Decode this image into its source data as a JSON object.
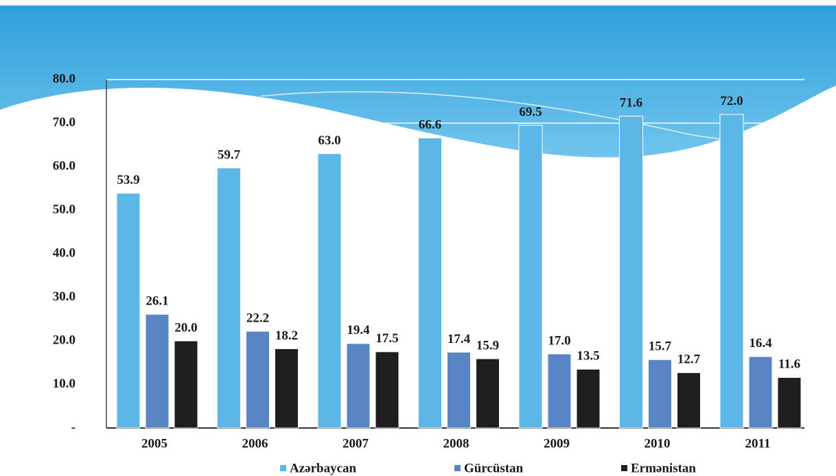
{
  "chart_data": {
    "type": "bar",
    "categories": [
      "2005",
      "2006",
      "2007",
      "2008",
      "2009",
      "2010",
      "2011"
    ],
    "series": [
      {
        "name": "Azərbaycan",
        "color": "#5cb6e6",
        "values": [
          53.9,
          59.7,
          63.0,
          66.6,
          69.5,
          71.6,
          72.0
        ],
        "value_labels": [
          "53.9",
          "59.7",
          "63.0",
          "66.6",
          "69.5",
          "71.6",
          "72.0"
        ]
      },
      {
        "name": "Gürcüstan",
        "color": "#5886c4",
        "values": [
          26.1,
          22.2,
          19.4,
          17.4,
          17.0,
          15.7,
          16.4
        ],
        "value_labels": [
          "26.1",
          "22.2",
          "19.4",
          "17.4",
          "17.0",
          "15.7",
          "16.4"
        ]
      },
      {
        "name": "Ermənistan",
        "color": "#1e1e1e",
        "values": [
          20.0,
          18.2,
          17.5,
          15.9,
          13.5,
          12.7,
          11.6
        ],
        "value_labels": [
          "20.0",
          "18.2",
          "17.5",
          "15.9",
          "13.5",
          "12.7",
          "11.6"
        ]
      }
    ],
    "ylim": [
      0,
      80
    ],
    "yticks": [
      {
        "value": 0,
        "label": "-"
      },
      {
        "value": 10,
        "label": "10.0"
      },
      {
        "value": 20,
        "label": "20.0"
      },
      {
        "value": 30,
        "label": "30.0"
      },
      {
        "value": 40,
        "label": "40.0"
      },
      {
        "value": 50,
        "label": "50.0"
      },
      {
        "value": 60,
        "label": "60.0"
      },
      {
        "value": 70,
        "label": "70.0"
      },
      {
        "value": 80,
        "label": "80.0"
      }
    ],
    "grid": true
  }
}
